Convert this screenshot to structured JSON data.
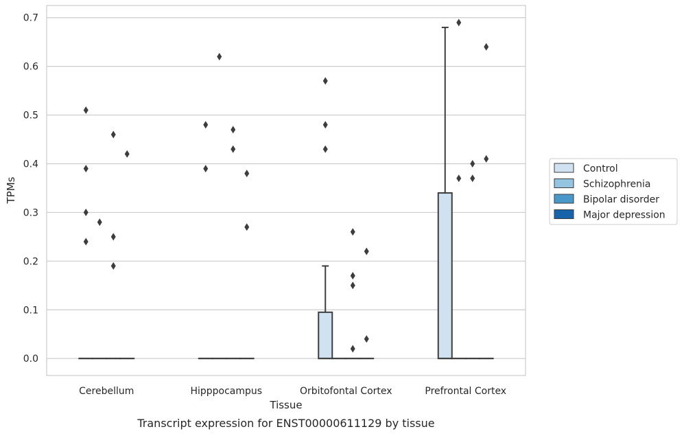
{
  "chart_data": {
    "type": "box",
    "xlabel": "Tissue",
    "ylabel": "TPMs",
    "caption": "Transcript expression for ENST00000611129 by tissue",
    "categories": [
      "Cerebellum",
      "Hipppocampus",
      "Orbitofontal Cortex",
      "Prefrontal Cortex"
    ],
    "yticks": [
      "0.0",
      "0.1",
      "0.2",
      "0.3",
      "0.4",
      "0.5",
      "0.6",
      "0.7"
    ],
    "ylim": [
      -0.035,
      0.725
    ],
    "grid": true,
    "legend_position": "right",
    "series": [
      {
        "name": "Control",
        "color": "#d0e1f2",
        "boxes": [
          {
            "q1": 0,
            "median": 0,
            "q3": 0,
            "whisker_low": 0,
            "whisker_high": 0,
            "outliers": [
              0.51,
              0.39,
              0.3,
              0.24
            ]
          },
          {
            "q1": 0,
            "median": 0,
            "q3": 0,
            "whisker_low": 0,
            "whisker_high": 0,
            "outliers": [
              0.48,
              0.39
            ]
          },
          {
            "q1": 0,
            "median": 0,
            "q3": 0.095,
            "whisker_low": 0,
            "whisker_high": 0.19,
            "outliers": [
              0.57,
              0.48,
              0.43
            ]
          },
          {
            "q1": 0,
            "median": 0,
            "q3": 0.34,
            "whisker_low": 0,
            "whisker_high": 0.68,
            "outliers": []
          }
        ]
      },
      {
        "name": "Schizophrenia",
        "color": "#94c4df",
        "boxes": [
          {
            "q1": 0,
            "median": 0,
            "q3": 0,
            "whisker_low": 0,
            "whisker_high": 0,
            "outliers": [
              0.28
            ]
          },
          {
            "q1": 0,
            "median": 0,
            "q3": 0,
            "whisker_low": 0,
            "whisker_high": 0,
            "outliers": [
              0.62
            ]
          },
          {
            "q1": 0,
            "median": 0,
            "q3": 0,
            "whisker_low": 0,
            "whisker_high": 0,
            "outliers": []
          },
          {
            "q1": 0,
            "median": 0,
            "q3": 0,
            "whisker_low": 0,
            "whisker_high": 0,
            "outliers": [
              0.69,
              0.37
            ]
          }
        ]
      },
      {
        "name": "Bipolar disorder",
        "color": "#4a98c9",
        "boxes": [
          {
            "q1": 0,
            "median": 0,
            "q3": 0,
            "whisker_low": 0,
            "whisker_high": 0,
            "outliers": [
              0.46,
              0.25,
              0.19
            ]
          },
          {
            "q1": 0,
            "median": 0,
            "q3": 0,
            "whisker_low": 0,
            "whisker_high": 0,
            "outliers": [
              0.47,
              0.43
            ]
          },
          {
            "q1": 0,
            "median": 0,
            "q3": 0,
            "whisker_low": 0,
            "whisker_high": 0,
            "outliers": [
              0.26,
              0.17,
              0.15,
              0.02
            ]
          },
          {
            "q1": 0,
            "median": 0,
            "q3": 0,
            "whisker_low": 0,
            "whisker_high": 0,
            "outliers": [
              0.4,
              0.37
            ]
          }
        ]
      },
      {
        "name": "Major depression",
        "color": "#1764ab",
        "boxes": [
          {
            "q1": 0,
            "median": 0,
            "q3": 0,
            "whisker_low": 0,
            "whisker_high": 0,
            "outliers": [
              0.42
            ]
          },
          {
            "q1": 0,
            "median": 0,
            "q3": 0,
            "whisker_low": 0,
            "whisker_high": 0,
            "outliers": [
              0.38,
              0.27
            ]
          },
          {
            "q1": 0,
            "median": 0,
            "q3": 0,
            "whisker_low": 0,
            "whisker_high": 0,
            "outliers": [
              0.22,
              0.04
            ]
          },
          {
            "q1": 0,
            "median": 0,
            "q3": 0,
            "whisker_low": 0,
            "whisker_high": 0,
            "outliers": [
              0.64,
              0.41
            ]
          }
        ]
      }
    ]
  }
}
